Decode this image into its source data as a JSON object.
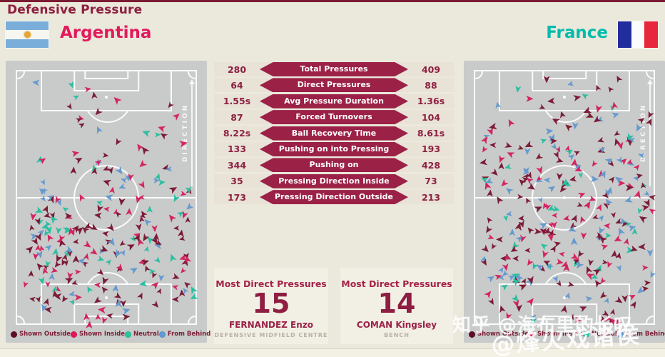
{
  "header": {
    "title": "Defensive Pressure",
    "home_team": "Argentina",
    "away_team": "France"
  },
  "pitch_direction_label": "DIRECTION",
  "legend": {
    "items": [
      {
        "label": "Shown Outside",
        "color": "#5f0e26"
      },
      {
        "label": "Shown Inside",
        "color": "#e5175a"
      },
      {
        "label": "Neutral",
        "color": "#27c49e"
      },
      {
        "label": "From Behind",
        "color": "#5e9cd8"
      }
    ]
  },
  "stats": {
    "rows": [
      {
        "home": "280",
        "label": "Total Pressures",
        "away": "409"
      },
      {
        "home": "64",
        "label": "Direct Pressures",
        "away": "88"
      },
      {
        "home": "1.55s",
        "label": "Avg Pressure Duration",
        "away": "1.36s"
      },
      {
        "home": "87",
        "label": "Forced Turnovers",
        "away": "104"
      },
      {
        "home": "8.22s",
        "label": "Ball Recovery Time",
        "away": "8.61s"
      },
      {
        "home": "133",
        "label": "Pushing on into Pressing",
        "away": "193"
      },
      {
        "home": "344",
        "label": "Pushing on",
        "away": "428"
      },
      {
        "home": "35",
        "label": "Pressing Direction Inside",
        "away": "73"
      },
      {
        "home": "173",
        "label": "Pressing Direction Outside",
        "away": "213"
      }
    ]
  },
  "cards": [
    {
      "title": "Most Direct Pressures",
      "value": "15",
      "player": "FERNANDEZ Enzo",
      "role": "DEFENSIVE MIDFIELD CENTRE"
    },
    {
      "title": "Most Direct Pressures",
      "value": "14",
      "player": "COMAN Kingsley",
      "role": "BENCH"
    }
  ],
  "watermarks": {
    "line1": "知乎 @海布里的长叹",
    "line2": "@烽火戏诸侯"
  },
  "colors": {
    "accent_maroon": "#9b2147",
    "title_maroon": "#8e1f3e",
    "home_name_pink": "#e11a5c",
    "away_name_teal": "#00bcab",
    "pitch_gray": "#c8cbca",
    "page_background": "#ebe8dc",
    "row_strip": "#e8e2d7",
    "card_background": "#f2efe5",
    "marker_palette": [
      "#7c1c37",
      "#d42460",
      "#2abfa0",
      "#6699cf"
    ]
  },
  "pitches": {
    "left": {
      "team": "Argentina",
      "scatter": {
        "seed": 7,
        "color_weights": [
          0.46,
          0.26,
          0.12,
          0.16
        ],
        "zones": [
          {
            "x": [
              8,
              90
            ],
            "y": [
              3,
              15
            ],
            "n": 8
          },
          {
            "x": [
              6,
              94
            ],
            "y": [
              15,
              30
            ],
            "n": 14
          },
          {
            "x": [
              4,
              96
            ],
            "y": [
              30,
              45
            ],
            "n": 26
          },
          {
            "x": [
              4,
              96
            ],
            "y": [
              45,
              60
            ],
            "n": 40
          },
          {
            "x": [
              3,
              97
            ],
            "y": [
              60,
              75
            ],
            "n": 55
          },
          {
            "x": [
              3,
              97
            ],
            "y": [
              75,
              92
            ],
            "n": 50
          },
          {
            "x": [
              8,
              60
            ],
            "y": [
              92,
              99
            ],
            "n": 10
          },
          {
            "x": [
              10,
              30
            ],
            "y": [
              50,
              66
            ],
            "n": 12,
            "w": [
              0.08,
              0.1,
              0.67,
              0.15
            ]
          },
          {
            "x": [
              5,
              40
            ],
            "y": [
              58,
              85
            ],
            "n": 28
          }
        ]
      }
    },
    "right": {
      "team": "France",
      "scatter": {
        "seed": 99,
        "color_weights": [
          0.41,
          0.25,
          0.13,
          0.21
        ],
        "zones": [
          {
            "x": [
              6,
              94
            ],
            "y": [
              2,
              12
            ],
            "n": 10
          },
          {
            "x": [
              4,
              96
            ],
            "y": [
              12,
              25
            ],
            "n": 24
          },
          {
            "x": [
              3,
              97
            ],
            "y": [
              25,
              40
            ],
            "n": 52
          },
          {
            "x": [
              3,
              97
            ],
            "y": [
              40,
              55
            ],
            "n": 62
          },
          {
            "x": [
              3,
              97
            ],
            "y": [
              55,
              70
            ],
            "n": 62
          },
          {
            "x": [
              3,
              97
            ],
            "y": [
              70,
              85
            ],
            "n": 62
          },
          {
            "x": [
              5,
              95
            ],
            "y": [
              85,
              99
            ],
            "n": 30
          }
        ]
      }
    }
  },
  "chart_data": [
    {
      "type": "table",
      "title": "Defensive Pressure",
      "categories": [
        "Total Pressures",
        "Direct Pressures",
        "Avg Pressure Duration",
        "Forced Turnovers",
        "Ball Recovery Time",
        "Pushing on into Pressing",
        "Pushing on",
        "Pressing Direction Inside",
        "Pressing Direction Outside"
      ],
      "series": [
        {
          "name": "Argentina",
          "values": [
            "280",
            "64",
            "1.55s",
            "87",
            "8.22s",
            "133",
            "344",
            "35",
            "173"
          ]
        },
        {
          "name": "France",
          "values": [
            "409",
            "88",
            "1.36s",
            "104",
            "8.61s",
            "193",
            "428",
            "73",
            "213"
          ]
        }
      ]
    },
    {
      "type": "scatter",
      "title": "Argentina pressure map",
      "legend_position": "bottom",
      "legend": [
        "Shown Outside",
        "Shown Inside",
        "Neutral",
        "From Behind"
      ],
      "note": "~280 directional pressure arrows on a vertical pitch, attack direction upward; sparse in the top third, dense in the lower two-thirds with a teal cluster on the left side"
    },
    {
      "type": "scatter",
      "title": "France pressure map",
      "legend_position": "bottom",
      "legend": [
        "Shown Outside",
        "Shown Inside",
        "Neutral",
        "From Behind"
      ],
      "note": "~409 directional pressure arrows on a vertical pitch, attack direction upward; spread over nearly the whole pitch, densest between midfield and the bottom penalty area"
    }
  ]
}
